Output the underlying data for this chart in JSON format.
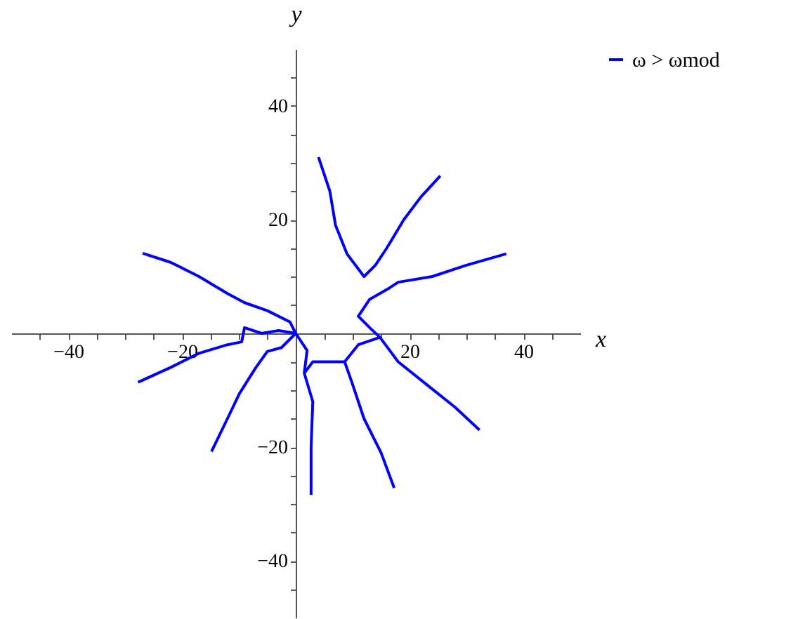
{
  "chart_data": {
    "type": "line",
    "xlabel": "x",
    "ylabel": "y",
    "xlim": [
      -50,
      50
    ],
    "ylim": [
      -50,
      50
    ],
    "xticks": [
      -40,
      -20,
      20,
      40,
      {
        "value": -45,
        "label": null
      },
      {
        "value": -35,
        "label": null
      },
      {
        "value": -30,
        "label": null
      },
      {
        "value": -25,
        "label": null
      },
      {
        "value": -15,
        "label": null
      },
      {
        "value": -10,
        "label": null
      },
      {
        "value": -5,
        "label": null
      },
      {
        "value": 5,
        "label": null
      },
      {
        "value": 10,
        "label": null
      },
      {
        "value": 15,
        "label": null
      },
      {
        "value": 25,
        "label": null
      },
      {
        "value": 30,
        "label": null
      },
      {
        "value": 35,
        "label": null
      },
      {
        "value": 45,
        "label": null
      }
    ],
    "yticks": [
      -40,
      -20,
      20,
      40,
      {
        "value": -45,
        "label": null
      },
      {
        "value": -35,
        "label": null
      },
      {
        "value": -30,
        "label": null
      },
      {
        "value": -25,
        "label": null
      },
      {
        "value": -15,
        "label": null
      },
      {
        "value": -10,
        "label": null
      },
      {
        "value": -5,
        "label": null
      },
      {
        "value": 5,
        "label": null
      },
      {
        "value": 10,
        "label": null
      },
      {
        "value": 15,
        "label": null
      },
      {
        "value": 25,
        "label": null
      },
      {
        "value": 30,
        "label": null
      },
      {
        "value": 35,
        "label": null
      },
      {
        "value": 45,
        "label": null
      }
    ],
    "grid": false,
    "legend": "right",
    "marker": "none",
    "line_style": "solid",
    "series": [
      {
        "name": "ω > ωmod",
        "color": "#0000ff",
        "x": [
          4,
          6,
          7,
          9,
          12,
          14,
          16,
          19,
          22,
          25.4,
          null,
          37,
          30,
          24,
          18,
          16.5,
          13,
          11,
          13,
          14.8,
          18,
          23,
          28,
          32.3,
          null,
          17.3,
          15,
          12,
          10,
          8.6,
          11,
          14.8,
          null,
          2.7,
          2.7,
          3,
          1.5,
          3,
          6,
          8.6,
          null,
          0,
          2,
          1.5,
          null,
          -26.9,
          -22,
          -17,
          -12,
          -9,
          -5,
          -1,
          0,
          null,
          -27.7,
          -22,
          -17,
          -12,
          -9.5,
          -9,
          -6,
          -3,
          0,
          null,
          -14.8,
          -12,
          -9.9,
          -7,
          -5,
          -2.5,
          0
        ],
        "values": [
          31,
          25,
          19,
          14,
          10,
          12,
          15,
          20,
          24,
          27.7,
          null,
          14,
          12,
          10,
          9,
          8,
          6,
          3,
          1,
          -0.7,
          -5,
          -9,
          -13,
          -17,
          null,
          -27.2,
          -21,
          -15,
          -9,
          -5,
          -2,
          -0.7,
          null,
          -28.4,
          -20,
          -12,
          -7,
          -5,
          -5,
          -5,
          null,
          0,
          -3,
          -7,
          null,
          14.1,
          12.5,
          10,
          7,
          5.4,
          4,
          2,
          0,
          null,
          -8.6,
          -6,
          -3.5,
          -2,
          -1.5,
          1,
          0,
          0.5,
          0,
          null,
          -20.8,
          -15,
          -10.6,
          -6,
          -3.2,
          -2.5,
          0
        ]
      }
    ]
  }
}
